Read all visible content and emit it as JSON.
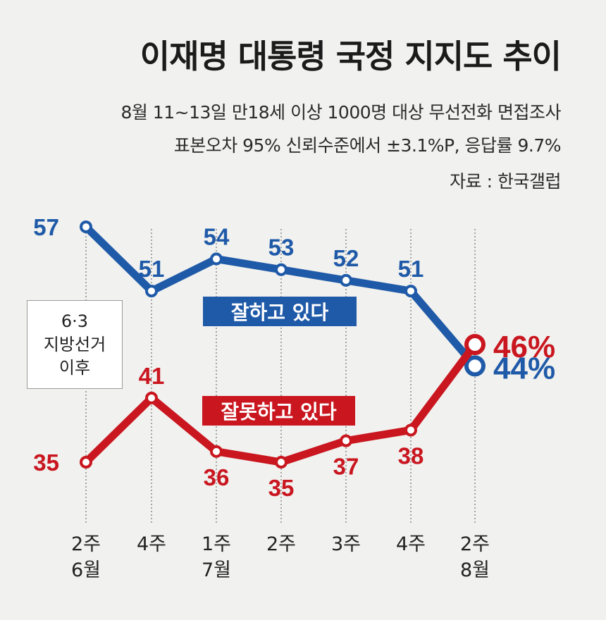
{
  "header": {
    "title": "이재명 대통령 국정 지지도 추이",
    "subtitle_line1": "8월 11~13일 만18세 이상 1000명 대상 무선전화 면접조사",
    "subtitle_line2": "표본오차 95% 신뢰수준에서 ±3.1%P, 응답률 9.7%",
    "source": "자료 : 한국갤럽"
  },
  "annotation": {
    "line1": "6·3",
    "line2": "지방선거",
    "line3": "이후"
  },
  "chart_data": {
    "type": "line",
    "categories": [
      [
        "2주",
        "6월"
      ],
      [
        "4주",
        ""
      ],
      [
        "1주",
        "7월"
      ],
      [
        "2주",
        ""
      ],
      [
        "3주",
        ""
      ],
      [
        "4주",
        ""
      ],
      [
        "2주",
        "8월"
      ]
    ],
    "series": [
      {
        "name": "잘하고 있다",
        "color": "#1f5aa8",
        "values": [
          57,
          51,
          54,
          53,
          52,
          51,
          44
        ],
        "labels": [
          "57",
          "51",
          "54",
          "53",
          "52",
          "51",
          "44%"
        ]
      },
      {
        "name": "잘못하고 있다",
        "color": "#c9161f",
        "values": [
          35,
          41,
          36,
          35,
          37,
          38,
          46
        ],
        "labels": [
          "35",
          "41",
          "36",
          "35",
          "37",
          "38",
          "46%"
        ]
      }
    ],
    "ylim": [
      33,
      58
    ],
    "grid": "vertical dotted",
    "legend": "inline"
  }
}
